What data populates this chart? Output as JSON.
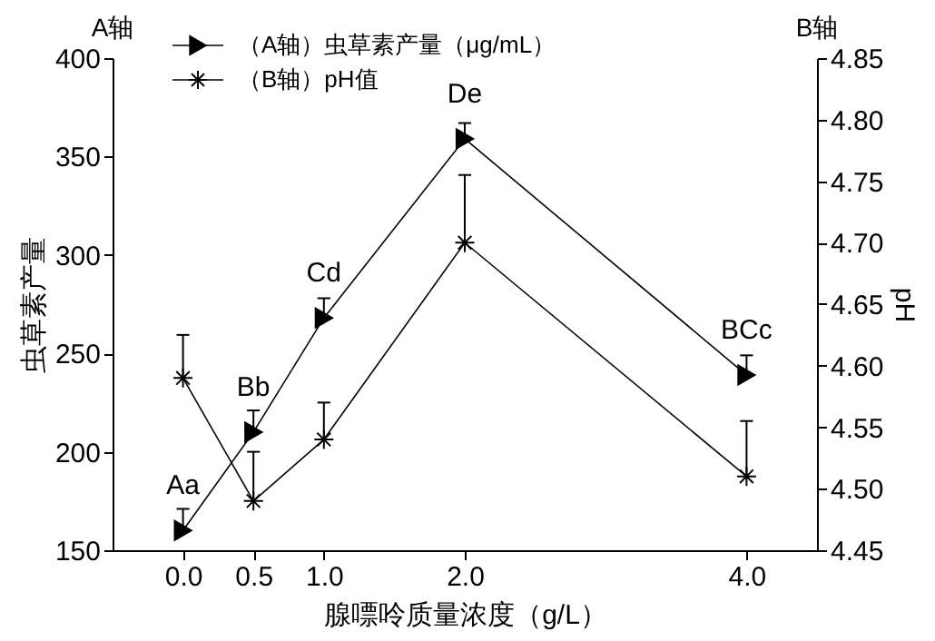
{
  "chart_data": {
    "type": "line",
    "xlabel": "腺嘌呤质量浓度（g/L）",
    "ylabel": "虫草素产量",
    "y2label": "pH",
    "x": [
      0,
      0.5,
      1,
      2,
      4
    ],
    "xlim": [
      -0.5,
      4.5
    ],
    "xticks": [
      {
        "value": 0,
        "label": "0.0"
      },
      {
        "value": 0.5,
        "label": "0.5"
      },
      {
        "value": 1,
        "label": "1.0"
      },
      {
        "value": 2,
        "label": "2.0"
      },
      {
        "value": 4,
        "label": "4.0"
      }
    ],
    "ylim": [
      150,
      400
    ],
    "yticks": [
      150,
      200,
      250,
      300,
      350,
      400
    ],
    "y2lim": [
      4.45,
      4.85
    ],
    "y2ticks": [
      {
        "value": 4.45,
        "label": "4.45"
      },
      {
        "value": 4.5,
        "label": "4.50"
      },
      {
        "value": 4.55,
        "label": "4.55"
      },
      {
        "value": 4.6,
        "label": "4.60"
      },
      {
        "value": 4.65,
        "label": "4.65"
      },
      {
        "value": 4.7,
        "label": "4.70"
      },
      {
        "value": 4.75,
        "label": "4.75"
      },
      {
        "value": 4.8,
        "label": "4.80"
      },
      {
        "value": 4.85,
        "label": "4.85"
      }
    ],
    "legend": "top left",
    "series": [
      {
        "name": "（A轴）虫草素产量（μg/mL）",
        "color": "#000000",
        "marker": "triangle",
        "values": [
          160,
          210,
          268,
          359,
          239
        ],
        "errors": [
          [
            160,
            171
          ],
          [
            210,
            221
          ],
          [
            268,
            278
          ],
          [
            359,
            367
          ],
          [
            239,
            249
          ]
        ]
      },
      {
        "name": "（B轴）pH值",
        "color": "#000000",
        "marker": "cross",
        "axis": "y2",
        "values": [
          4.59,
          4.49,
          4.54,
          4.7,
          4.51
        ],
        "errors": [
          [
            4.59,
            4.625
          ],
          [
            4.49,
            4.53
          ],
          [
            4.54,
            4.57
          ],
          [
            4.7,
            4.755
          ],
          [
            4.51,
            4.555
          ]
        ]
      }
    ],
    "annotations": [
      "A轴",
      "B轴",
      {
        "text": "Aa",
        "x": 0,
        "y": 160
      },
      {
        "text": "Bb",
        "x": 0.5,
        "y": 210
      },
      {
        "text": "Cd",
        "x": 1,
        "y": 268
      },
      {
        "text": "De",
        "x": 2,
        "y": 359
      },
      {
        "text": "BCc",
        "x": 4,
        "y": 239
      }
    ]
  }
}
